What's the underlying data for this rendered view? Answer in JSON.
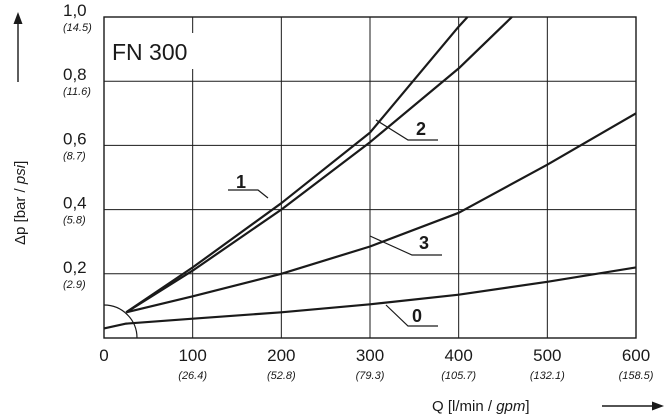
{
  "chart_data": {
    "type": "line",
    "title": "FN 300",
    "xlabel": {
      "prefix": "Q [l/min / ",
      "italic": "gpm",
      "suffix": "]"
    },
    "ylabel": {
      "prefix": "Δp [bar / ",
      "italic": "psi",
      "suffix": "]"
    },
    "xlim": [
      0,
      600
    ],
    "ylim": [
      0,
      1.0
    ],
    "grid": true,
    "x_ticks": [
      {
        "value": 0,
        "label": "0",
        "sub": ""
      },
      {
        "value": 100,
        "label": "100",
        "sub": "(26.4)"
      },
      {
        "value": 200,
        "label": "200",
        "sub": "(52.8)"
      },
      {
        "value": 300,
        "label": "300",
        "sub": "(79.3)"
      },
      {
        "value": 400,
        "label": "400",
        "sub": "(105.7)"
      },
      {
        "value": 500,
        "label": "500",
        "sub": "(132.1)"
      },
      {
        "value": 600,
        "label": "600",
        "sub": "(158.5)"
      }
    ],
    "y_ticks": [
      {
        "value": 0.2,
        "label": "0,2",
        "sub": "(2.9)"
      },
      {
        "value": 0.4,
        "label": "0,4",
        "sub": "(5.8)"
      },
      {
        "value": 0.6,
        "label": "0,6",
        "sub": "(8.7)"
      },
      {
        "value": 0.8,
        "label": "0,8",
        "sub": "(11.6)"
      },
      {
        "value": 1.0,
        "label": "1,0",
        "sub": "(14.5)"
      }
    ],
    "series": [
      {
        "name": "0",
        "x": [
          0,
          25,
          100,
          200,
          300,
          400,
          500,
          600
        ],
        "y": [
          0.03,
          0.045,
          0.06,
          0.08,
          0.105,
          0.135,
          0.175,
          0.22
        ]
      },
      {
        "name": "1",
        "x": [
          25,
          100,
          200,
          300,
          400,
          410
        ],
        "y": [
          0.08,
          0.22,
          0.42,
          0.64,
          0.97,
          1.0
        ]
      },
      {
        "name": "2",
        "x": [
          25,
          100,
          200,
          300,
          400,
          460
        ],
        "y": [
          0.08,
          0.21,
          0.4,
          0.61,
          0.84,
          1.0
        ]
      },
      {
        "name": "3",
        "x": [
          25,
          100,
          200,
          300,
          400,
          500,
          600
        ],
        "y": [
          0.08,
          0.13,
          0.2,
          0.285,
          0.39,
          0.54,
          0.7
        ]
      }
    ]
  }
}
